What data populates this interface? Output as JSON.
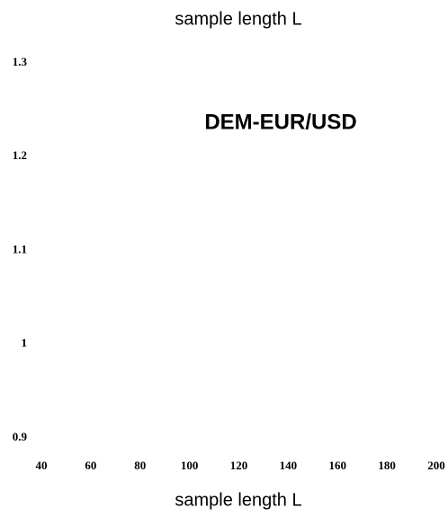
{
  "chart_data": {
    "type": "line",
    "title": "DEM-EUR/USD",
    "top_label": "sample length L",
    "xlabel": "sample length L",
    "series": [],
    "xlim": [
      40,
      200
    ],
    "xticks": [
      40,
      60,
      80,
      100,
      120,
      140,
      160,
      180,
      200
    ],
    "ylim": [
      0.9,
      1.3
    ],
    "yticks": [
      0.9,
      1,
      1.1,
      1.2,
      1.3
    ],
    "grid": false
  }
}
